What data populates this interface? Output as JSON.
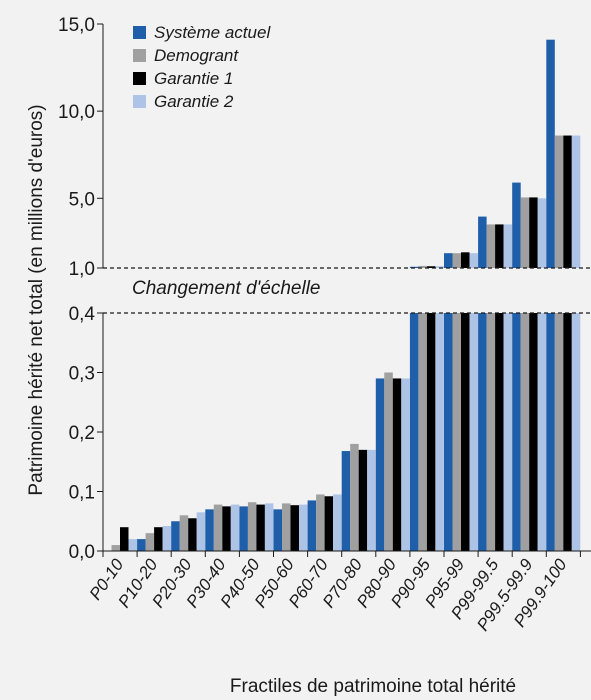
{
  "chart_data": {
    "type": "bar",
    "ylabel": "Patrimoine hérité net total (en millions d'euros)",
    "xlabel": "Fractiles de patrimoine total hérité",
    "break_label": "Changement d'échelle",
    "categories": [
      "P0-10",
      "P10-20",
      "P20-30",
      "P30-40",
      "P40-50",
      "P50-60",
      "P60-70",
      "P70-80",
      "P80-90",
      "P90-95",
      "P95-99",
      "P99-99.5",
      "P99.5-99.9",
      "P99.9-100"
    ],
    "series": [
      {
        "name": "Système actuel",
        "color": "#1f5ea8",
        "values": [
          0.0,
          0.02,
          0.05,
          0.07,
          0.075,
          0.07,
          0.085,
          0.168,
          0.29,
          1.07,
          1.85,
          3.95,
          5.9,
          14.1
        ]
      },
      {
        "name": "Demogrant",
        "color": "#a0a0a0",
        "values": [
          0.01,
          0.03,
          0.06,
          0.078,
          0.082,
          0.08,
          0.095,
          0.18,
          0.3,
          1.12,
          1.85,
          3.5,
          5.05,
          8.6
        ]
      },
      {
        "name": "Garantie 1",
        "color": "#000000",
        "values": [
          0.04,
          0.04,
          0.055,
          0.075,
          0.078,
          0.077,
          0.092,
          0.17,
          0.29,
          1.1,
          1.9,
          3.5,
          5.05,
          8.6
        ]
      },
      {
        "name": "Garantie 2",
        "color": "#aec4e6",
        "values": [
          0.02,
          0.042,
          0.065,
          0.078,
          0.08,
          0.078,
          0.095,
          0.17,
          0.29,
          1.1,
          1.85,
          3.5,
          5.0,
          8.6
        ]
      }
    ],
    "upper_axis": {
      "ylim": [
        1.0,
        15.0
      ],
      "ticks": [
        "15,0",
        "10,0",
        "5,0",
        "1,0"
      ],
      "tick_values": [
        15,
        10,
        5,
        1
      ]
    },
    "lower_axis": {
      "ylim": [
        0.0,
        0.4
      ],
      "ticks": [
        "0,4",
        "0,3",
        "0,2",
        "0,1",
        "0,0"
      ],
      "tick_values": [
        0.4,
        0.3,
        0.2,
        0.1,
        0.0
      ]
    },
    "legend_position": "top-left"
  }
}
